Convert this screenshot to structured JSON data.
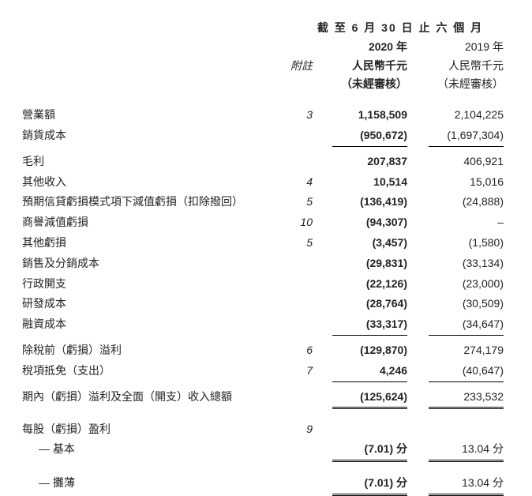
{
  "header": {
    "period_title": "截 至 6 月 30 日 止 六 個 月",
    "year_2020": "2020 年",
    "year_2019": "2019 年",
    "notes_label": "附註",
    "currency_2020": "人民幣千元",
    "currency_2019": "人民幣千元",
    "audit_2020": "（未經審核）",
    "audit_2019": "（未經審核）"
  },
  "rows": {
    "revenue": {
      "label": "營業額",
      "note": "3",
      "v2020": "1,158,509",
      "v2019": "2,104,225"
    },
    "cogs": {
      "label": "銷貨成本",
      "note": "",
      "v2020": "(950,672)",
      "v2019": "(1,697,304)"
    },
    "gross": {
      "label": "毛利",
      "note": "",
      "v2020": "207,837",
      "v2019": "406,921"
    },
    "other_income": {
      "label": "其他收入",
      "note": "4",
      "v2020": "10,514",
      "v2019": "15,016"
    },
    "ecl": {
      "label": "預期信貸虧損模式項下減值虧損（扣除撥回）",
      "note": "5",
      "v2020": "(136,419)",
      "v2019": "(24,888)"
    },
    "goodwill": {
      "label": "商譽減值虧損",
      "note": "10",
      "v2020": "(94,307)",
      "v2019": "–"
    },
    "other_loss": {
      "label": "其他虧損",
      "note": "5",
      "v2020": "(3,457)",
      "v2019": "(1,580)"
    },
    "selling": {
      "label": "銷售及分銷成本",
      "note": "",
      "v2020": "(29,831)",
      "v2019": "(33,134)"
    },
    "admin": {
      "label": "行政開支",
      "note": "",
      "v2020": "(22,126)",
      "v2019": "(23,000)"
    },
    "rnd": {
      "label": "研發成本",
      "note": "",
      "v2020": "(28,764)",
      "v2019": "(30,509)"
    },
    "finance": {
      "label": "融資成本",
      "note": "",
      "v2020": "(33,317)",
      "v2019": "(34,647)"
    },
    "pbt": {
      "label": "除稅前（虧損）溢利",
      "note": "6",
      "v2020": "(129,870)",
      "v2019": "274,179"
    },
    "tax": {
      "label": "稅項抵免（支出）",
      "note": "7",
      "v2020": "4,246",
      "v2019": "(40,647)"
    },
    "total": {
      "label": "期內（虧損）溢利及全面（開支）收入總額",
      "note": "",
      "v2020": "(125,624)",
      "v2019": "233,532"
    },
    "eps_title": {
      "label": "每股（虧損）盈利",
      "note": "9"
    },
    "eps_basic": {
      "label": "— 基本",
      "v2020": "(7.01) 分",
      "v2019": "13.04 分"
    },
    "eps_diluted": {
      "label": "— 攤薄",
      "v2020": "(7.01) 分",
      "v2019": "13.04 分"
    }
  }
}
